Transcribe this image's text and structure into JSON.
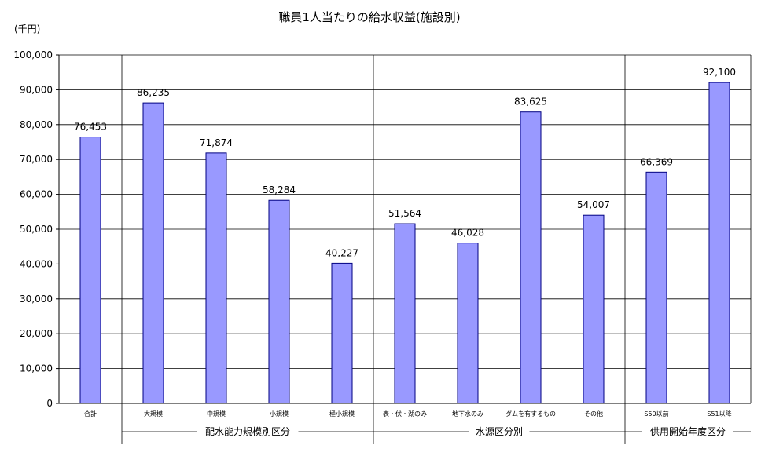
{
  "chart_data": {
    "type": "bar",
    "title": "職員1人当たりの給水収益(施設別)",
    "unit_label": "(千円)",
    "ylim": [
      0,
      100000
    ],
    "yticks": [
      "0",
      "10,000",
      "20,000",
      "30,000",
      "40,000",
      "50,000",
      "60,000",
      "70,000",
      "80,000",
      "90,000",
      "100,000"
    ],
    "grid": true,
    "bar_color": "#9999ff",
    "categories": [
      "合計",
      "大規模",
      "中規模",
      "小規模",
      "極小規模",
      "表・伏・湖のみ",
      "地下水のみ",
      "ダムを有するもの",
      "その他",
      "S50以前",
      "S51以降"
    ],
    "values": [
      76453,
      86235,
      71874,
      58284,
      40227,
      51564,
      46028,
      83625,
      54007,
      66369,
      92100
    ],
    "value_labels": [
      "76,453",
      "86,235",
      "71,874",
      "58,284",
      "40,227",
      "51,564",
      "46,028",
      "83,625",
      "54,007",
      "66,369",
      "92,100"
    ],
    "groups": [
      {
        "label": "配水能力規模別区分",
        "start": 1,
        "end": 4
      },
      {
        "label": "水源区分別",
        "start": 5,
        "end": 8
      },
      {
        "label": "供用開始年度区分",
        "start": 9,
        "end": 10
      }
    ]
  }
}
